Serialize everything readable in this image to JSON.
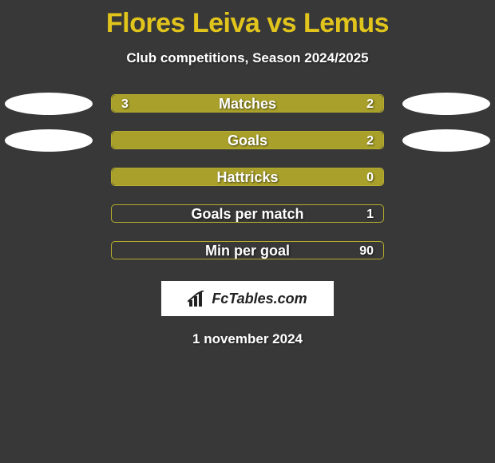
{
  "background_color": "#383838",
  "title_color": "#e1c41c",
  "title": "Flores Leiva vs Lemus",
  "subtitle": "Club competitions, Season 2024/2025",
  "oval_color": "#ffffff",
  "logo_text": "FcTables.com",
  "date": "1 november 2024",
  "stats": [
    {
      "label": "Matches",
      "left_val": "3",
      "right_val": "2",
      "left_pct": 60,
      "right_pct": 40,
      "left_color": "#a8a02a",
      "right_color": "#a8a02a",
      "border_color": "#b6ad2e",
      "show_ovals": true
    },
    {
      "label": "Goals",
      "left_val": "",
      "right_val": "2",
      "left_pct": 35,
      "right_pct": 65,
      "left_color": "#a8a02a",
      "right_color": "#a8a02a",
      "border_color": "#b6ad2e",
      "show_ovals": true
    },
    {
      "label": "Hattricks",
      "left_val": "",
      "right_val": "0",
      "left_pct": 100,
      "right_pct": 0,
      "left_color": "#a8a02a",
      "right_color": "#a8a02a",
      "border_color": "#b6ad2e",
      "show_ovals": false
    },
    {
      "label": "Goals per match",
      "left_val": "",
      "right_val": "1",
      "left_pct": 0,
      "right_pct": 0,
      "left_color": "#a8a02a",
      "right_color": "#a8a02a",
      "border_color": "#b6ad2e",
      "show_ovals": false
    },
    {
      "label": "Min per goal",
      "left_val": "",
      "right_val": "90",
      "left_pct": 0,
      "right_pct": 0,
      "left_color": "#a8a02a",
      "right_color": "#a8a02a",
      "border_color": "#b6ad2e",
      "show_ovals": false
    }
  ]
}
